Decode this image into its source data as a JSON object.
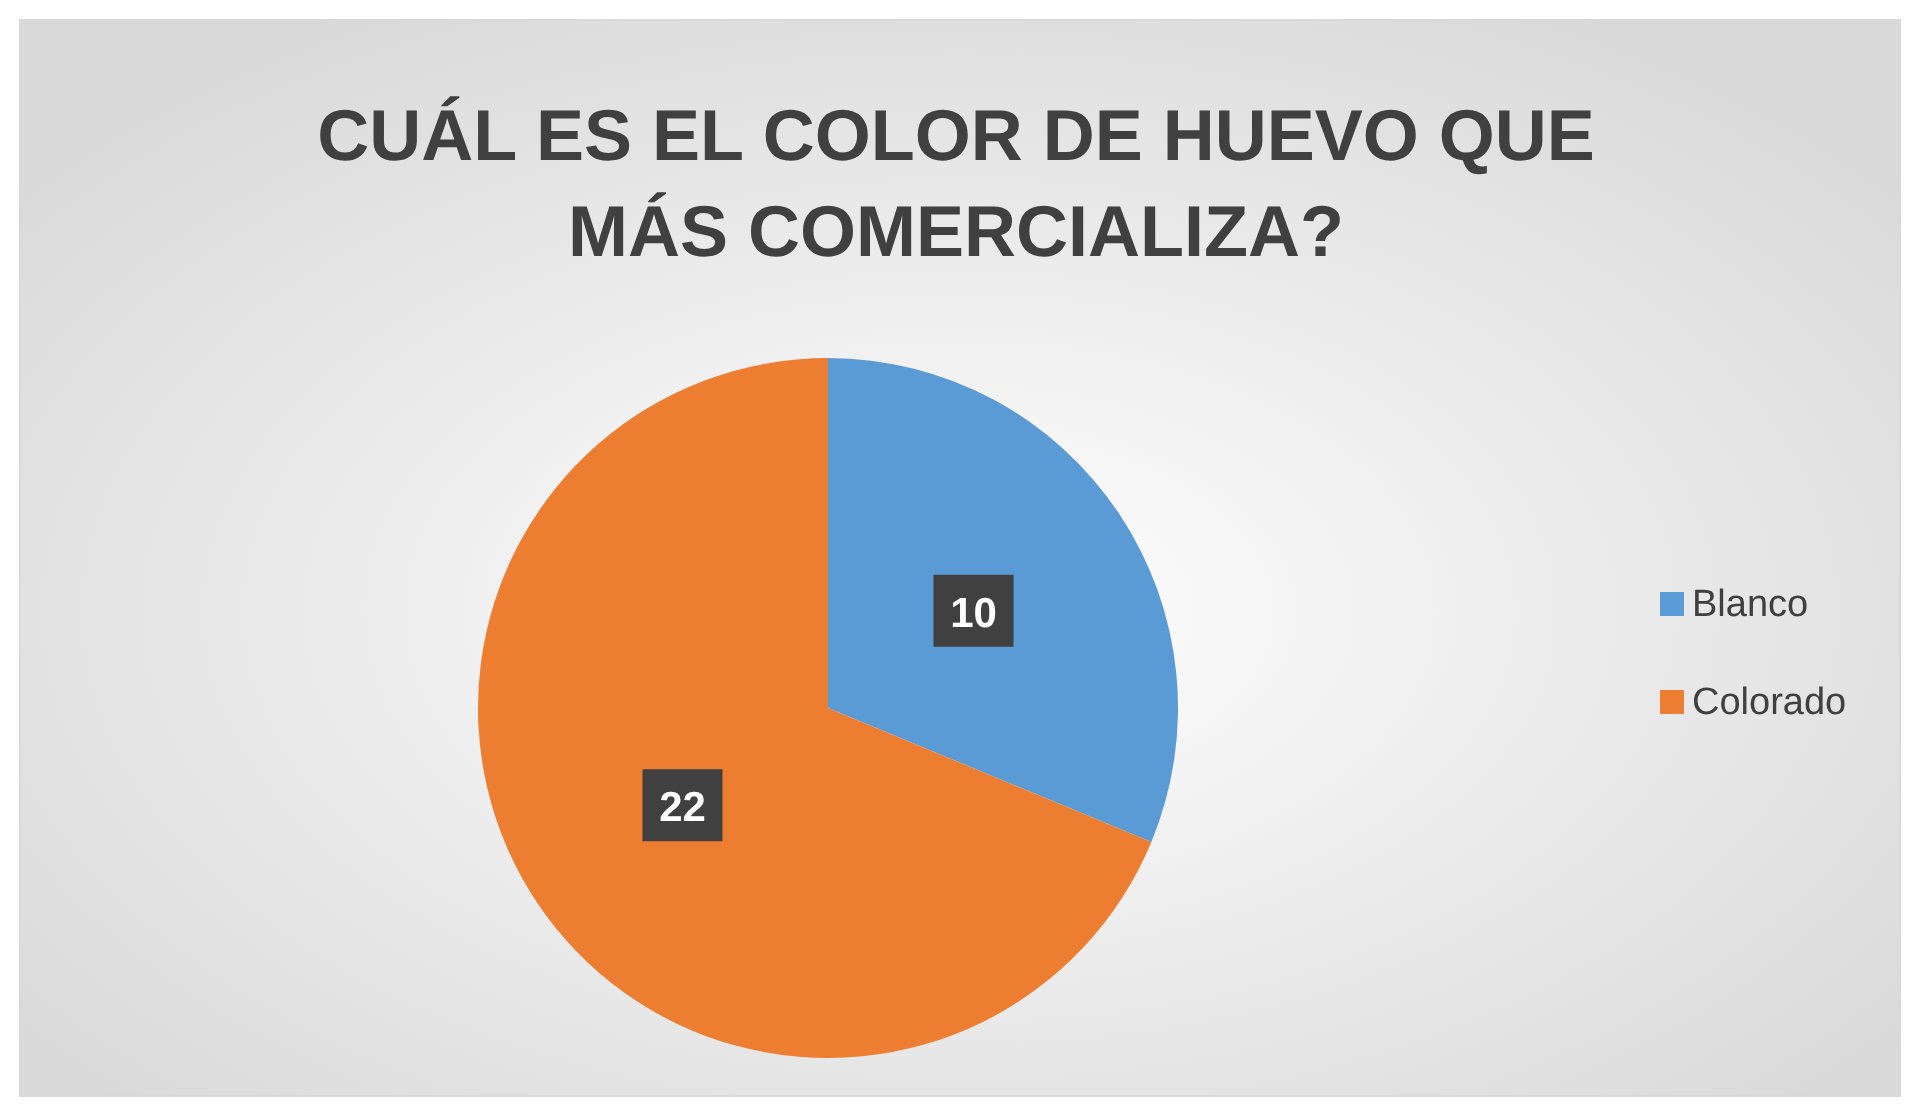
{
  "chart_data": {
    "type": "pie",
    "title": "CUÁL ES EL COLOR DE HUEVO QUE MÁS COMERCIALIZA?",
    "categories": [
      "Blanco",
      "Colorado"
    ],
    "values": [
      10,
      22
    ],
    "colors": [
      "#5b9bd5",
      "#ed7d31"
    ],
    "data_labels": true,
    "legend": "right"
  }
}
